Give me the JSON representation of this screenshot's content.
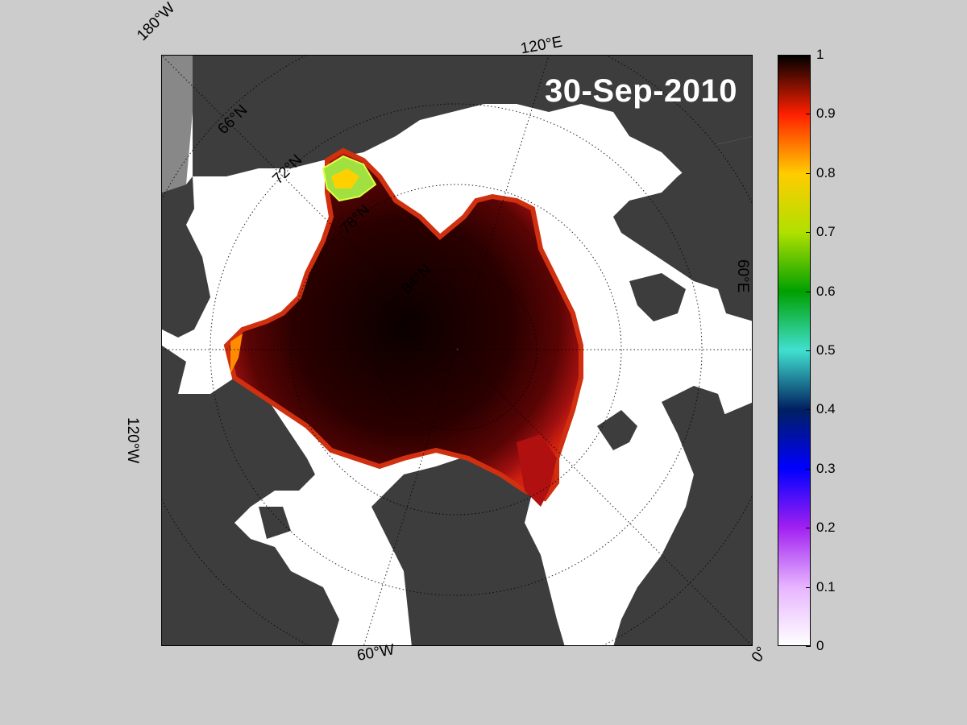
{
  "map": {
    "date": "30-Sep-2010",
    "projection": "polar stereographic, north",
    "variable": "sea ice concentration",
    "colors": {
      "ocean": "#ffffff",
      "land": "#3d3d3d",
      "background": "#cccccc"
    }
  },
  "labels": {
    "lon_180w": "180°W",
    "lon_120e": "120°E",
    "lon_60e": "60°E",
    "lon_120w": "120°W",
    "lon_60w": "60°W",
    "lon_0": "0°",
    "lat_66n": "66°N",
    "lat_72n": "72°N",
    "lat_78n": "78°N",
    "lat_84n": "84°N"
  },
  "colorbar": {
    "ticks": [
      "0",
      "0.1",
      "0.2",
      "0.3",
      "0.4",
      "0.5",
      "0.6",
      "0.7",
      "0.8",
      "0.9",
      "1"
    ],
    "colormap": [
      "#ffffff",
      "#e6b3ff",
      "#a020f0",
      "#0000ff",
      "#002060",
      "#40e0d0",
      "#00a000",
      "#b0e000",
      "#ffcc00",
      "#ff2000",
      "#000000"
    ]
  }
}
